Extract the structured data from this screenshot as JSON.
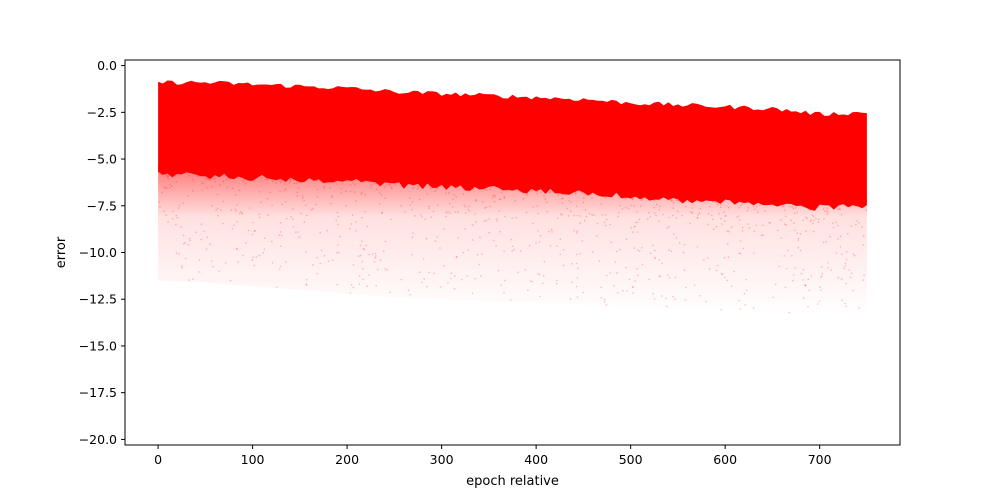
{
  "chart_data": {
    "type": "scatter",
    "title": "",
    "xlabel": "epoch relative",
    "ylabel": "error",
    "xlim": [
      -35,
      785
    ],
    "ylim": [
      -20.3,
      0.3
    ],
    "x_ticks": [
      0,
      100,
      200,
      300,
      400,
      500,
      600,
      700
    ],
    "y_ticks": [
      0.0,
      -2.5,
      -5.0,
      -7.5,
      -10.0,
      -12.5,
      -15.0,
      -17.5,
      -20.0
    ],
    "grid": false,
    "legend": "none",
    "marker_color": "#ff0000",
    "x_range": [
      0,
      750
    ],
    "dense_band": {
      "x": [
        0,
        50,
        100,
        150,
        200,
        250,
        300,
        350,
        400,
        450,
        500,
        550,
        600,
        650,
        700,
        750
      ],
      "upper": [
        -0.9,
        -0.9,
        -1.0,
        -1.1,
        -1.2,
        -1.4,
        -1.5,
        -1.6,
        -1.7,
        -1.8,
        -2.0,
        -2.1,
        -2.2,
        -2.3,
        -2.6,
        -2.5
      ],
      "lower": [
        -5.8,
        -5.9,
        -6.0,
        -6.1,
        -6.2,
        -6.4,
        -6.5,
        -6.6,
        -6.7,
        -6.8,
        -7.0,
        -7.2,
        -7.3,
        -7.5,
        -7.6,
        -7.5
      ]
    },
    "sparse_tail_min": [
      -11.5,
      -11.6,
      -11.8,
      -12.0,
      -12.2,
      -12.4,
      -12.5,
      -12.6,
      -12.7,
      -12.8,
      -12.9,
      -13.0,
      -13.1,
      -13.2,
      -13.3,
      -13.3
    ]
  }
}
